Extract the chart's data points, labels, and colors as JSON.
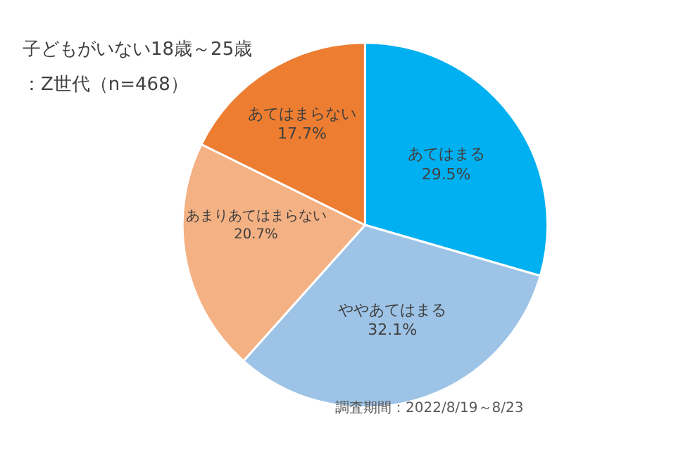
{
  "chart_data": {
    "type": "pie",
    "title": "子どもがいない18歳～25歳",
    "subtitle": "：Z世代（n=468）",
    "categories": [
      "あてはまる",
      "ややあてはまる",
      "あまりあてはまらない",
      "あてはまらない"
    ],
    "values": [
      29.5,
      32.1,
      20.7,
      17.7
    ],
    "value_labels": [
      "29.5%",
      "32.1%",
      "20.7%",
      "17.7%"
    ],
    "colors": [
      "#00b0f0",
      "#9dc3e6",
      "#f4b183",
      "#ed7d31"
    ],
    "legend": false,
    "annotations": [
      "調査期間：2022/8/19～8/23"
    ]
  }
}
